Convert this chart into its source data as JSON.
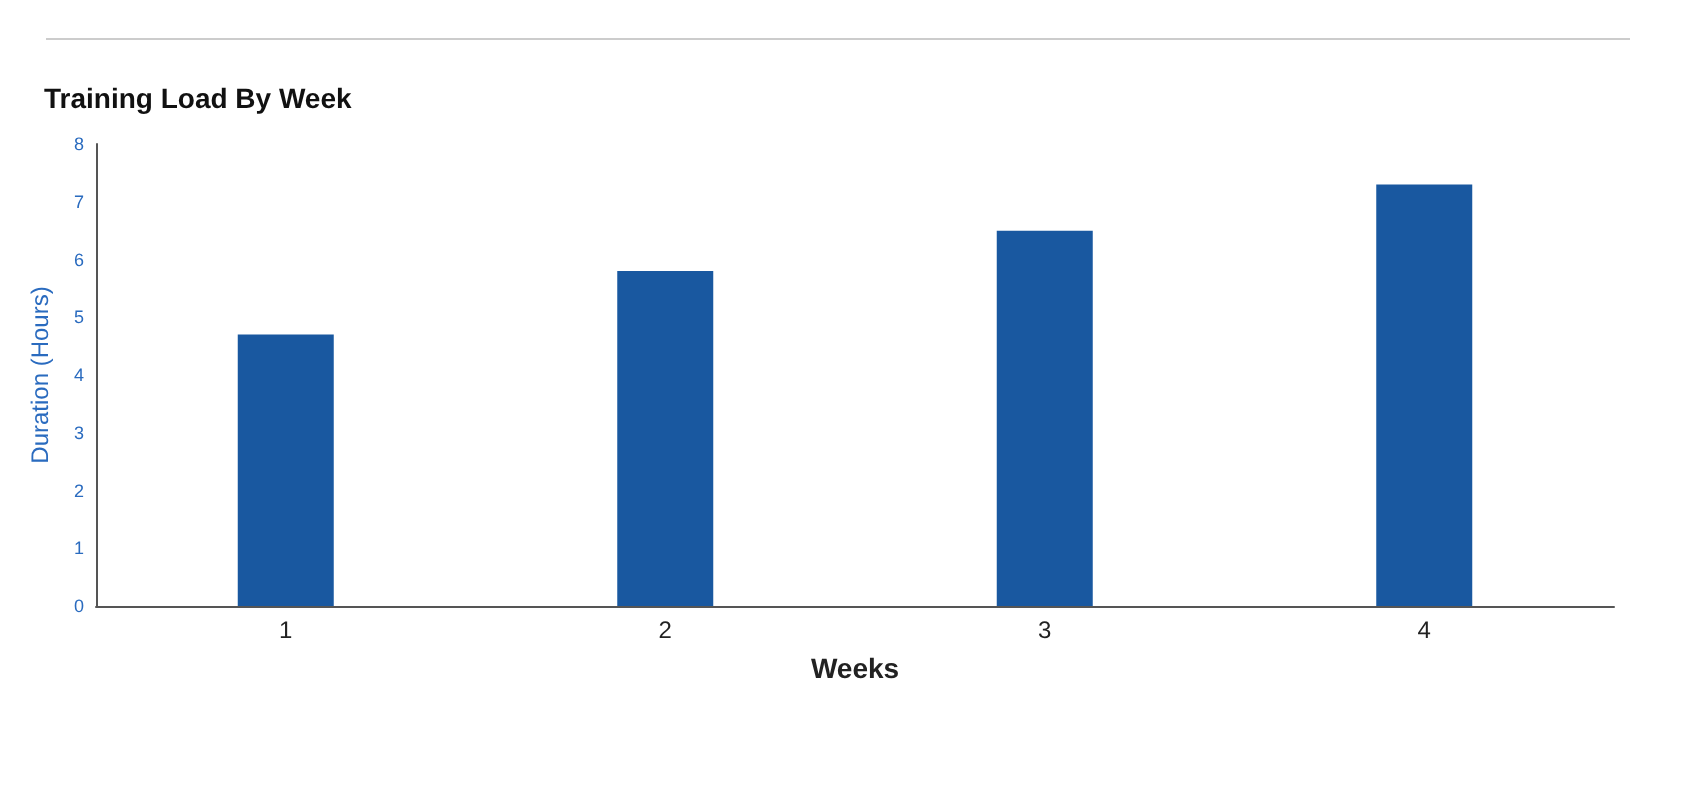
{
  "chart_data": {
    "type": "bar",
    "title": "Training Load By Week",
    "xlabel": "Weeks",
    "ylabel": "Duration (Hours)",
    "categories": [
      "1",
      "2",
      "3",
      "4"
    ],
    "values": [
      4.7,
      5.8,
      6.5,
      7.3
    ],
    "color": "#1958a0",
    "ylim": [
      0,
      8
    ],
    "yticks": [
      0,
      1,
      2,
      3,
      4,
      5,
      6,
      7,
      8
    ],
    "grid": false
  }
}
